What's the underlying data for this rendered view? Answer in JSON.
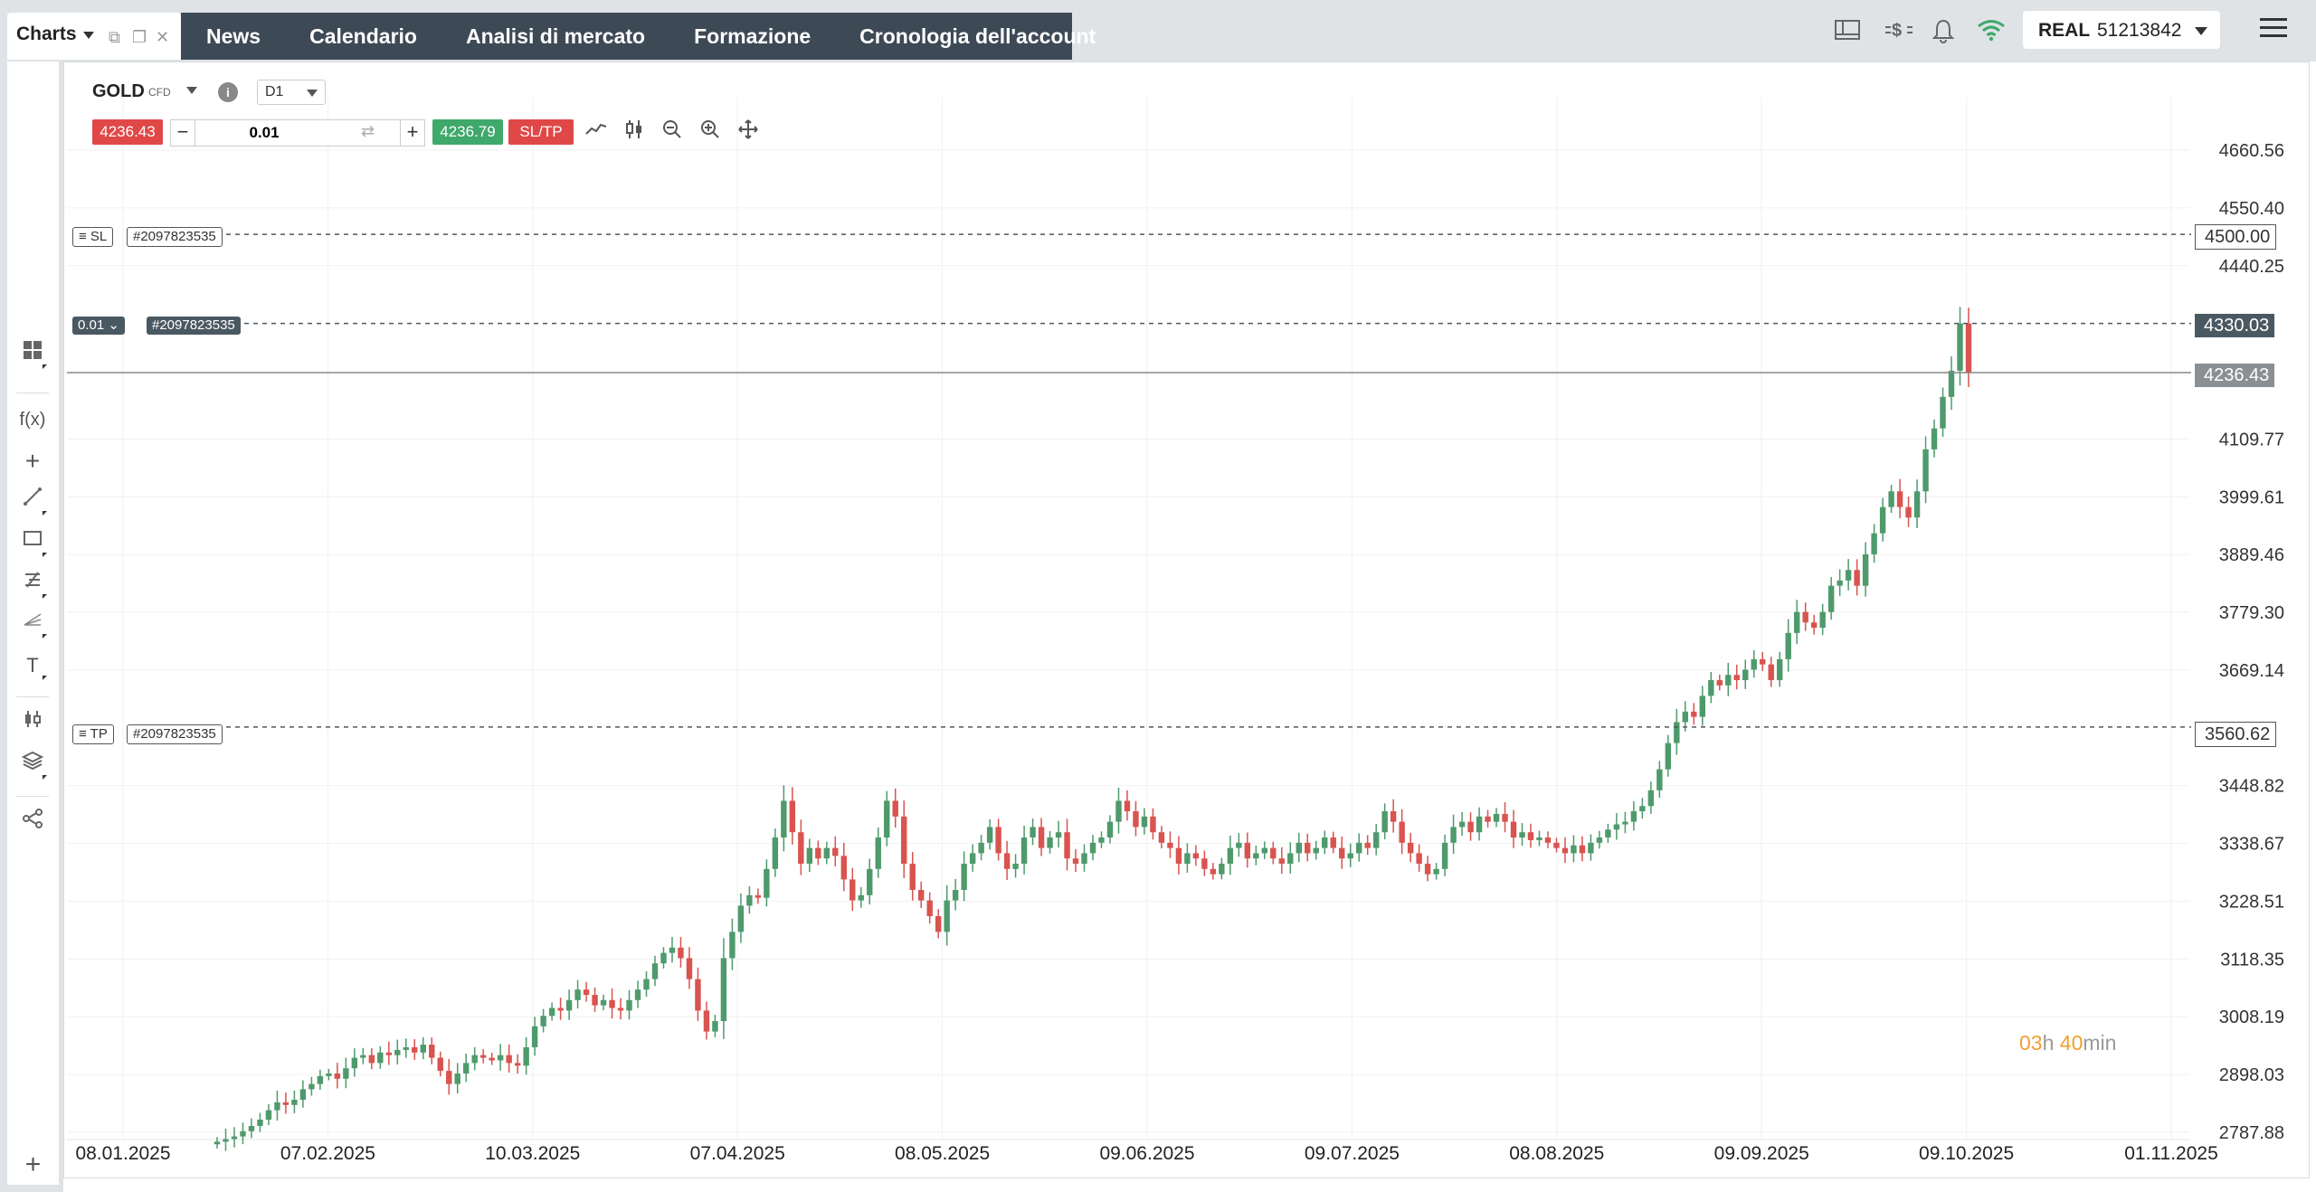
{
  "topbar": {
    "charts_tab_label": "Charts",
    "nav": [
      "News",
      "Calendario",
      "Analisi di mercato",
      "Formazione",
      "Cronologia dell'account"
    ],
    "icons": [
      "layout-icon",
      "currency-exchange-icon",
      "bell-icon",
      "wifi-icon"
    ],
    "account_type": "REAL",
    "account_number": "51213842"
  },
  "toolbar": {
    "symbol": "GOLD",
    "symbol_type": "CFD",
    "timeframe": "D1",
    "sell_price": "4236.43",
    "quantity": "0.01",
    "buy_price": "4236.79",
    "sltp_label": "SL/TP"
  },
  "orders": {
    "sl_label": "SL",
    "sl_id": "#2097823535",
    "sl_price": "4500.00",
    "pos_size": "0.01",
    "pos_id": "#2097823535",
    "pos_price": "4330.03",
    "current_price": "4236.43",
    "tp_label": "TP",
    "tp_id": "#2097823535",
    "tp_price": "3560.62"
  },
  "countdown": {
    "hours": "03",
    "h_unit": "h",
    "minutes": "40",
    "m_unit": "min"
  },
  "colors": {
    "up": "#4e9a6c",
    "down": "#d9534f",
    "nav_bg": "#3d4a56"
  },
  "chart_data": {
    "type": "candlestick",
    "symbol": "GOLD",
    "timeframe": "D1",
    "y_ticks": [
      "4660.56",
      "4550.40",
      "4440.25",
      "4109.77",
      "3999.61",
      "3889.46",
      "3779.30",
      "3669.14",
      "3448.82",
      "3338.67",
      "3228.51",
      "3118.35",
      "3008.19",
      "2898.03",
      "2787.88"
    ],
    "x_ticks": [
      "08.01.2025",
      "07.02.2025",
      "10.03.2025",
      "07.04.2025",
      "08.05.2025",
      "09.06.2025",
      "09.07.2025",
      "08.08.2025",
      "09.09.2025",
      "09.10.2025",
      "01.11.2025"
    ],
    "ylim": [
      2787.88,
      4660.56
    ],
    "closes": [
      2770,
      2775,
      2780,
      2790,
      2800,
      2812,
      2830,
      2845,
      2840,
      2850,
      2870,
      2880,
      2895,
      2900,
      2890,
      2910,
      2930,
      2935,
      2920,
      2940,
      2935,
      2945,
      2950,
      2940,
      2955,
      2930,
      2905,
      2880,
      2900,
      2920,
      2935,
      2930,
      2925,
      2935,
      2920,
      2915,
      2950,
      2990,
      3010,
      3025,
      3020,
      3040,
      3060,
      3050,
      3030,
      3040,
      3025,
      3020,
      3040,
      3060,
      3080,
      3110,
      3130,
      3140,
      3120,
      3080,
      3020,
      2980,
      3000,
      3120,
      3170,
      3220,
      3240,
      3235,
      3290,
      3350,
      3420,
      3360,
      3300,
      3330,
      3310,
      3330,
      3315,
      3270,
      3230,
      3240,
      3290,
      3350,
      3420,
      3390,
      3300,
      3250,
      3230,
      3200,
      3170,
      3230,
      3250,
      3300,
      3320,
      3340,
      3370,
      3320,
      3290,
      3300,
      3350,
      3370,
      3330,
      3350,
      3360,
      3310,
      3300,
      3320,
      3340,
      3350,
      3380,
      3420,
      3400,
      3370,
      3390,
      3360,
      3340,
      3330,
      3300,
      3320,
      3310,
      3290,
      3280,
      3300,
      3330,
      3340,
      3310,
      3320,
      3330,
      3310,
      3300,
      3320,
      3340,
      3320,
      3330,
      3350,
      3330,
      3310,
      3320,
      3340,
      3330,
      3360,
      3400,
      3380,
      3340,
      3320,
      3300,
      3280,
      3290,
      3340,
      3370,
      3380,
      3360,
      3390,
      3380,
      3395,
      3380,
      3350,
      3360,
      3345,
      3350,
      3340,
      3330,
      3320,
      3335,
      3320,
      3340,
      3350,
      3365,
      3375,
      3380,
      3400,
      3410,
      3440,
      3480,
      3530,
      3570,
      3590,
      3580,
      3620,
      3650,
      3640,
      3660,
      3650,
      3670,
      3690,
      3680,
      3650,
      3690,
      3740,
      3780,
      3760,
      3750,
      3780,
      3830,
      3840,
      3860,
      3830,
      3890,
      3930,
      3980,
      4010,
      3980,
      3960,
      4010,
      4090,
      4130,
      4190,
      4240,
      4330,
      4236
    ]
  }
}
